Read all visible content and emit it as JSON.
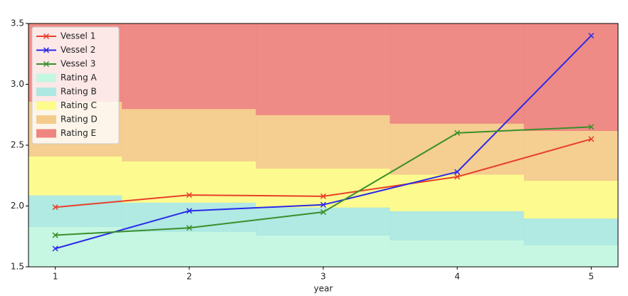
{
  "chart_data": {
    "type": "line",
    "x_label": "year",
    "x": [
      1,
      2,
      3,
      4,
      5
    ],
    "xlim": [
      0.8,
      5.2
    ],
    "xticks": [
      1,
      2,
      3,
      4,
      5
    ],
    "ylim": [
      1.5,
      3.5
    ],
    "yticks": [
      1.5,
      2.0,
      2.5,
      3.0,
      3.5
    ],
    "series": [
      {
        "name": "Vessel 1",
        "color": "#e8402a",
        "values": [
          1.99,
          2.09,
          2.08,
          2.24,
          2.55
        ]
      },
      {
        "name": "Vessel 2",
        "color": "#2a2ae8",
        "values": [
          1.65,
          1.96,
          2.01,
          2.28,
          3.4
        ]
      },
      {
        "name": "Vessel 3",
        "color": "#3a8f2a",
        "values": [
          1.76,
          1.82,
          1.95,
          2.6,
          2.65
        ]
      }
    ],
    "bands": [
      {
        "name": "Rating A",
        "color": "#c3f7e0",
        "upper": [
          1.83,
          1.79,
          1.76,
          1.72,
          1.68
        ]
      },
      {
        "name": "Rating B",
        "color": "#ade8e2",
        "upper": [
          2.09,
          2.03,
          1.99,
          1.96,
          1.9
        ]
      },
      {
        "name": "Rating C",
        "color": "#fdfb8a",
        "upper": [
          2.41,
          2.37,
          2.31,
          2.26,
          2.21
        ]
      },
      {
        "name": "Rating D",
        "color": "#f4cb8c",
        "upper": [
          2.86,
          2.8,
          2.75,
          2.68,
          2.62
        ]
      },
      {
        "name": "Rating E",
        "color": "#ee8580"
      }
    ],
    "legend": "upper left"
  }
}
